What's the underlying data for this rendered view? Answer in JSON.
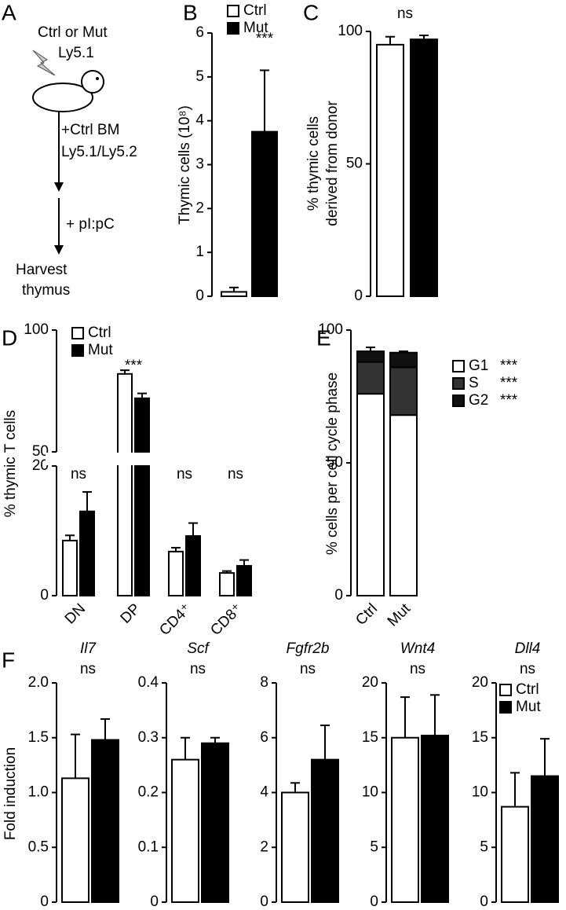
{
  "diagram": {
    "panel": "A",
    "donor": "Ctrl or Mut",
    "donor_marker": "Ly5.1",
    "step1": "+Ctrl BM",
    "step1_marker": "Ly5.1/Ly5.2",
    "step2": "+ pI:pC",
    "end1": "Harvest",
    "end2": "thymus"
  },
  "chart_data": [
    {
      "type": "bar",
      "panel": "B",
      "ylabel": "Thymic cells (10⁸)",
      "ylim": [
        0,
        6
      ],
      "yticks": [
        0,
        1,
        2,
        3,
        4,
        5,
        6
      ],
      "annotation": "***",
      "series": [
        {
          "name": "Ctrl",
          "color": "#ffffff",
          "values": [
            0.1,
            null
          ],
          "errors": [
            0.1,
            null
          ]
        },
        {
          "name": "Mut",
          "color": "#000000",
          "values": [
            null,
            3.75
          ],
          "errors": [
            null,
            1.4
          ]
        }
      ]
    },
    {
      "type": "bar",
      "panel": "C",
      "ylabel": [
        "% thymic cells",
        "derived from donor"
      ],
      "ylim": [
        0,
        100
      ],
      "yticks": [
        0,
        50,
        100
      ],
      "annotation": "ns",
      "series": [
        {
          "color": "#ffffff",
          "values": [
            95,
            null
          ],
          "errors": [
            3,
            null
          ]
        },
        {
          "color": "#000000",
          "values": [
            null,
            97
          ],
          "errors": [
            null,
            1.5
          ]
        }
      ]
    },
    {
      "type": "bar",
      "panel": "D",
      "ylabel": "% thymic T cells",
      "ylim": [
        0,
        100
      ],
      "yticks": [
        0,
        20,
        50,
        100
      ],
      "axis_break": [
        20,
        50
      ],
      "categories": [
        "DN",
        "DP",
        "CD4⁺",
        "CD8⁺"
      ],
      "category_annotations": [
        "ns",
        "***",
        "ns",
        "ns"
      ],
      "series": [
        {
          "name": "Ctrl",
          "color": "#ffffff",
          "values": [
            8.5,
            82,
            6.8,
            3.5
          ],
          "errors": [
            0.8,
            1.5,
            0.6,
            0.3
          ]
        },
        {
          "name": "Mut",
          "color": "#000000",
          "values": [
            13,
            72,
            9.2,
            4.6
          ],
          "errors": [
            3,
            2,
            2,
            0.9
          ]
        }
      ]
    },
    {
      "type": "stacked_bar",
      "panel": "E",
      "ylabel": "% cells per cell cycle phase",
      "ylim": [
        0,
        100
      ],
      "yticks": [
        0,
        50,
        100
      ],
      "categories": [
        "Ctrl",
        "Mut"
      ],
      "legend_annotations": [
        "***",
        "***",
        "***"
      ],
      "series": [
        {
          "name": "G1",
          "color": "#ffffff",
          "values": [
            76,
            68
          ]
        },
        {
          "name": "S",
          "color": "#333333",
          "values": [
            12,
            18
          ]
        },
        {
          "name": "G2",
          "color": "#111111",
          "values": [
            4,
            5.5
          ],
          "errors": [
            1.5,
            0.5
          ]
        }
      ]
    },
    {
      "type": "bar",
      "panel": "F",
      "title": "Il7",
      "ylabel": "Fold induction",
      "annotation": "ns",
      "ylim": [
        0,
        2
      ],
      "yticks": [
        0,
        {
          "value": 0.5,
          "label": "0.5"
        },
        {
          "value": 1,
          "label": "1.0"
        },
        {
          "value": 1.5,
          "label": "1.5"
        },
        {
          "value": 2,
          "label": "2.0"
        }
      ],
      "series": [
        {
          "color": "#ffffff",
          "values": [
            1.13,
            null
          ],
          "errors": [
            0.4,
            null
          ]
        },
        {
          "color": "#000000",
          "values": [
            null,
            1.48
          ],
          "errors": [
            null,
            0.19
          ]
        }
      ]
    },
    {
      "type": "bar",
      "title": "Scf",
      "annotation": "ns",
      "ylim": [
        0,
        0.4
      ],
      "yticks": [
        0,
        0.1,
        0.2,
        0.3,
        0.4
      ],
      "series": [
        {
          "color": "#ffffff",
          "values": [
            0.26,
            null
          ],
          "errors": [
            0.04,
            null
          ]
        },
        {
          "color": "#000000",
          "values": [
            null,
            0.29
          ],
          "errors": [
            null,
            0.01
          ]
        }
      ]
    },
    {
      "type": "bar",
      "title": "Fgfr2b",
      "annotation": "ns",
      "ylim": [
        0,
        8
      ],
      "yticks": [
        0,
        2,
        4,
        6,
        8
      ],
      "series": [
        {
          "color": "#ffffff",
          "values": [
            4.0,
            null
          ],
          "errors": [
            0.35,
            null
          ]
        },
        {
          "color": "#000000",
          "values": [
            null,
            5.2
          ],
          "errors": [
            null,
            1.25
          ]
        }
      ]
    },
    {
      "type": "bar",
      "title": "Wnt4",
      "annotation": "ns",
      "ylim": [
        0,
        20
      ],
      "yticks": [
        0,
        5,
        10,
        15,
        20
      ],
      "series": [
        {
          "color": "#ffffff",
          "values": [
            15.0,
            null
          ],
          "errors": [
            3.7,
            null
          ]
        },
        {
          "color": "#000000",
          "values": [
            null,
            15.2
          ],
          "errors": [
            null,
            3.7
          ]
        }
      ]
    },
    {
      "type": "bar",
      "title": "Dll4",
      "annotation": "ns",
      "ylim": [
        0,
        20
      ],
      "yticks": [
        0,
        5,
        10,
        15,
        20
      ],
      "series": [
        {
          "name": "Ctrl",
          "color": "#ffffff",
          "values": [
            8.7,
            null
          ],
          "errors": [
            3.1,
            null
          ]
        },
        {
          "name": "Mut",
          "color": "#000000",
          "values": [
            null,
            11.5
          ],
          "errors": [
            null,
            3.4
          ]
        }
      ]
    }
  ]
}
